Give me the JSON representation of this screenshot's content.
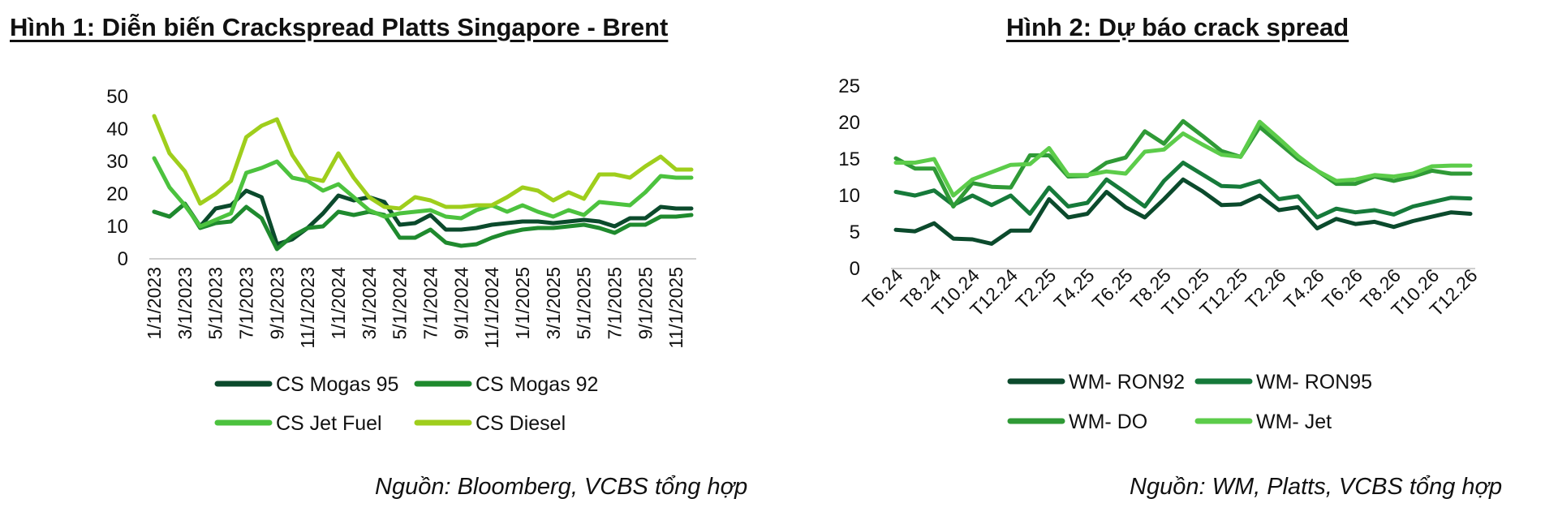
{
  "figure1": {
    "title": "Hình 1: Diễn biến Crackspread Platts Singapore - Brent",
    "source": "Nguồn: Bloomberg, VCBS tổng hợp"
  },
  "figure2": {
    "title": "Hình 2: Dự báo crack spread",
    "source": "Nguồn: WM, Platts, VCBS tổng hợp"
  },
  "chart_data": [
    {
      "type": "line",
      "title": "Hình 1: Diễn biến Crackspread Platts Singapore - Brent",
      "xlabel": "",
      "ylabel": "",
      "ylim": [
        0,
        50
      ],
      "yticks": [
        0,
        10,
        20,
        30,
        40,
        50
      ],
      "grid": false,
      "legend": "bottom",
      "categories": [
        "1/1/2023",
        "2/1/2023",
        "3/1/2023",
        "4/1/2023",
        "5/1/2023",
        "6/1/2023",
        "7/1/2023",
        "8/1/2023",
        "9/1/2023",
        "10/1/2023",
        "11/1/2023",
        "12/1/2023",
        "1/1/2024",
        "2/1/2024",
        "3/1/2024",
        "4/1/2024",
        "5/1/2024",
        "6/1/2024",
        "7/1/2024",
        "8/1/2024",
        "9/1/2024",
        "10/1/2024",
        "11/1/2024",
        "12/1/2024",
        "1/1/2025",
        "2/1/2025",
        "3/1/2025",
        "4/1/2025",
        "5/1/2025",
        "6/1/2025",
        "7/1/2025",
        "8/1/2025",
        "9/1/2025",
        "10/1/2025",
        "11/1/2025",
        "12/1/2025"
      ],
      "tick_labels": [
        "1/1/2023",
        "3/1/2023",
        "5/1/2023",
        "7/1/2023",
        "9/1/2023",
        "11/1/2023",
        "1/1/2024",
        "3/1/2024",
        "5/1/2024",
        "7/1/2024",
        "9/1/2024",
        "11/1/2024",
        "1/1/2025",
        "3/1/2025",
        "5/1/2025",
        "7/1/2025",
        "9/1/2025",
        "11/1/2025"
      ],
      "series": [
        {
          "name": "CS Mogas 95",
          "color": "#0b4a2c",
          "values": [
            14.5,
            13,
            17,
            10,
            15.5,
            16.5,
            21,
            19,
            4.5,
            6,
            9.5,
            14,
            19.5,
            18,
            19,
            17.5,
            10.5,
            11,
            13.5,
            9,
            9,
            9.5,
            10.5,
            11,
            11.5,
            11.5,
            11,
            11.5,
            12,
            11.5,
            10,
            12.5,
            12.5,
            16,
            15.5,
            15.5
          ]
        },
        {
          "name": "CS Mogas 92",
          "color": "#1f8a2e",
          "values": [
            14.5,
            13,
            17,
            9.5,
            11,
            11.5,
            16,
            12.5,
            3,
            7,
            9.5,
            10,
            14.5,
            13.5,
            14.5,
            13.5,
            6.5,
            6.5,
            9,
            5,
            4,
            4.5,
            6.5,
            8,
            9,
            9.5,
            9.5,
            10,
            10.5,
            9.5,
            8,
            10.5,
            10.5,
            13,
            13,
            13.5
          ]
        },
        {
          "name": "CS Jet Fuel",
          "color": "#4cc23e",
          "values": [
            31,
            22,
            16.5,
            10,
            12,
            14,
            26.5,
            28,
            30,
            25,
            24,
            21,
            23,
            19,
            15,
            13,
            14,
            14.5,
            15,
            13,
            12.5,
            15,
            16.5,
            14.5,
            16.5,
            14.5,
            13,
            15,
            13.5,
            17.5,
            17,
            16.5,
            20.5,
            25.5,
            25,
            25
          ]
        },
        {
          "name": "CS Diesel",
          "color": "#9fce1c",
          "values": [
            44,
            32.5,
            27,
            17,
            20,
            24,
            37.5,
            41,
            43,
            32,
            25,
            24,
            32.5,
            25,
            19,
            16,
            15.5,
            19,
            18,
            16,
            16,
            16.5,
            16.5,
            19,
            22,
            21,
            18,
            20.5,
            18.5,
            26,
            26,
            25,
            28.5,
            31.5,
            27.5,
            27.5
          ]
        }
      ]
    },
    {
      "type": "line",
      "title": "Hình 2: Dự báo crack spread",
      "xlabel": "",
      "ylabel": "",
      "ylim": [
        0,
        25
      ],
      "yticks": [
        0,
        5,
        10,
        15,
        20,
        25
      ],
      "grid": false,
      "legend": "bottom",
      "categories": [
        "T6.24",
        "T7.24",
        "T8.24",
        "T9.24",
        "T10.24",
        "T11.24",
        "T12.24",
        "T1.25",
        "T2.25",
        "T3.25",
        "T4.25",
        "T5.25",
        "T6.25",
        "T7.25",
        "T8.25",
        "T9.25",
        "T10.25",
        "T11.25",
        "T12.25",
        "T1.26",
        "T2.26",
        "T3.26",
        "T4.26",
        "T5.26",
        "T6.26",
        "T7.26",
        "T8.26",
        "T9.26",
        "T10.26",
        "T11.26",
        "T12.26"
      ],
      "tick_labels": [
        "T6.24",
        "T8.24",
        "T10.24",
        "T12.24",
        "T2.25",
        "T4.25",
        "T6.25",
        "T8.25",
        "T10.25",
        "T12.25",
        "T2.26",
        "T4.26",
        "T6.26",
        "T8.26",
        "T10.26",
        "T12.26"
      ],
      "series": [
        {
          "name": "WM- RON92",
          "color": "#0b4a2c",
          "values": [
            5.3,
            5.1,
            6.2,
            4.1,
            4,
            3.4,
            5.2,
            5.2,
            9.5,
            7,
            7.5,
            10.5,
            8.4,
            7,
            9.5,
            12.2,
            10.6,
            8.7,
            8.8,
            10,
            8,
            8.4,
            5.5,
            6.8,
            6.1,
            6.4,
            5.7,
            6.5,
            7.1,
            7.7,
            7.5
          ]
        },
        {
          "name": "WM- RON95",
          "color": "#167a3a",
          "values": [
            10.5,
            10,
            10.7,
            8.7,
            10,
            8.7,
            10,
            7.5,
            11.1,
            8.5,
            9,
            12.2,
            10.4,
            8.5,
            12,
            14.5,
            12.9,
            11.3,
            11.2,
            12,
            9.5,
            9.9,
            7,
            8.2,
            7.7,
            8,
            7.4,
            8.5,
            9.1,
            9.7,
            9.6
          ]
        },
        {
          "name": "WM- DO",
          "color": "#2f9a36",
          "values": [
            15.1,
            13.7,
            13.7,
            8.5,
            11.7,
            11.2,
            11.1,
            15.5,
            15.5,
            12.6,
            12.7,
            14.5,
            15.2,
            18.8,
            17.1,
            20.2,
            18.2,
            16.1,
            15.3,
            19.4,
            17.2,
            15,
            13.4,
            11.6,
            11.6,
            12.6,
            12,
            12.6,
            13.4,
            13,
            13
          ]
        },
        {
          "name": "WM- Jet",
          "color": "#5ccc4a",
          "values": [
            14.5,
            14.5,
            15,
            10,
            12.2,
            13.2,
            14.2,
            14.3,
            16.5,
            12.8,
            12.8,
            13.3,
            13,
            16,
            16.3,
            18.5,
            17,
            15.6,
            15.3,
            20.1,
            17.8,
            15.4,
            13.4,
            12,
            12.2,
            12.8,
            12.6,
            13,
            14,
            14.1,
            14.1
          ]
        }
      ]
    }
  ]
}
